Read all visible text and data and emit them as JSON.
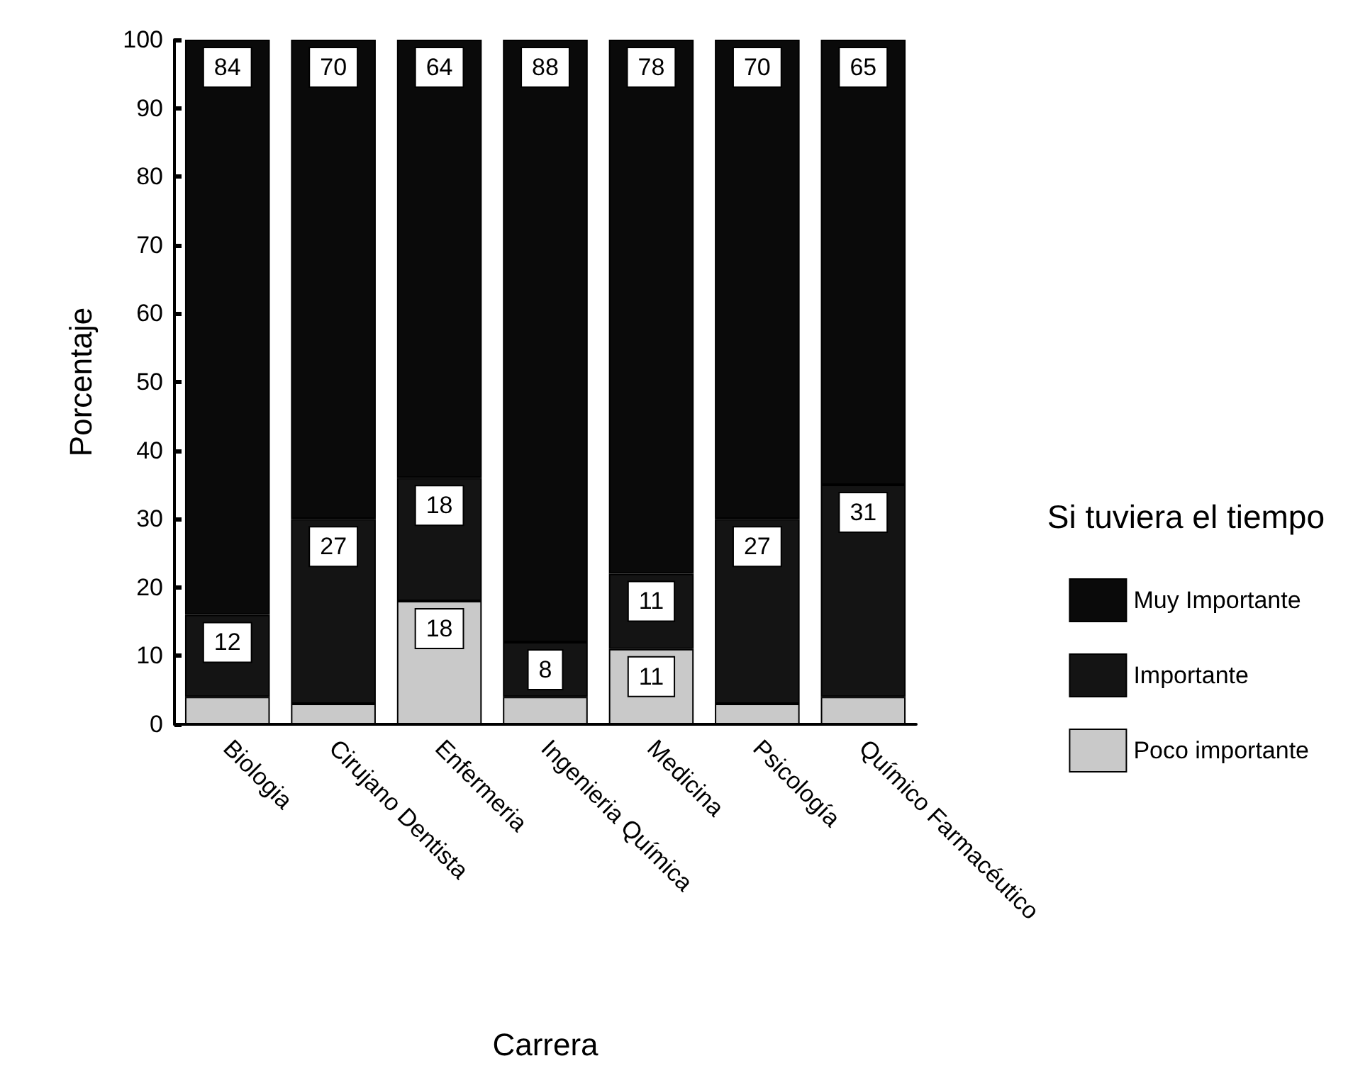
{
  "chart_data": {
    "type": "bar",
    "stacked": true,
    "xlabel": "Carrera",
    "ylabel": "Porcentaje",
    "legend_title": "Si tuviera el tiempo",
    "legend": "right",
    "grid": false,
    "categories": [
      "Biologia",
      "Cirujano Dentista",
      "Enfermeria",
      "Ingenieria Química",
      "Medicina",
      "Psicología",
      "Químico Farmacéutico"
    ],
    "ylim": [
      0,
      100
    ],
    "yticks": [
      0,
      10,
      20,
      30,
      40,
      50,
      60,
      70,
      80,
      90,
      100
    ],
    "series": [
      {
        "name": "Poco importante",
        "color": "#c9c9c9",
        "values": [
          4,
          3,
          18,
          4,
          11,
          3,
          4
        ],
        "value_labels": [
          null,
          null,
          "18",
          null,
          "11",
          null,
          null
        ]
      },
      {
        "name": "Importante",
        "color": "#141414",
        "values": [
          12,
          27,
          18,
          8,
          11,
          27,
          31
        ],
        "value_labels": [
          "12",
          "27",
          "18",
          "8",
          "11",
          "27",
          "31"
        ]
      },
      {
        "name": "Muy Importante",
        "color": "#0a0a0a",
        "values": [
          84,
          70,
          64,
          88,
          78,
          70,
          65
        ],
        "value_labels": [
          "84",
          "70",
          "64",
          "88",
          "78",
          "70",
          "65"
        ]
      }
    ]
  }
}
